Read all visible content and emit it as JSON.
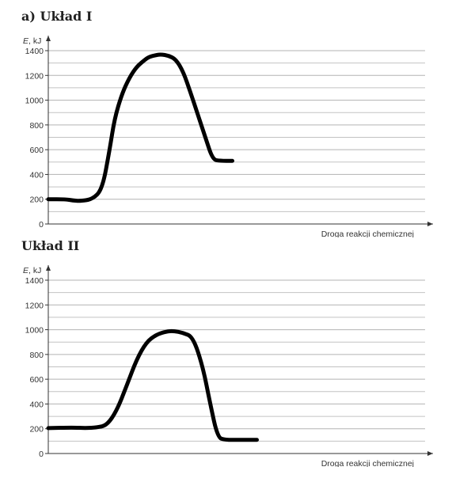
{
  "chart_data": [
    {
      "type": "line",
      "title": "a) Układ I",
      "ylabel_italic": "E",
      "ylabel_unit": ", kJ",
      "xlabel": "Droga reakcji chemicznej",
      "ylim": [
        0,
        1400
      ],
      "yticks": [
        0,
        200,
        400,
        600,
        800,
        1000,
        1200,
        1400
      ],
      "grid": true,
      "line_color": "#000000",
      "series": [
        {
          "x": [
            0,
            0.07,
            0.1,
            0.13,
            0.18,
            0.22,
            0.25,
            0.27,
            0.3,
            0.33,
            0.36,
            0.39,
            0.41,
            0.44,
            0.46,
            0.49,
            0.52,
            0.55,
            0.58,
            0.61,
            0.64,
            0.67,
            0.7,
            0.75
          ],
          "y": [
            200,
            200,
            190,
            185,
            200,
            280,
            600,
            850,
            1050,
            1180,
            1270,
            1320,
            1350,
            1365,
            1370,
            1360,
            1330,
            1230,
            1060,
            880,
            700,
            520,
            510,
            510
          ]
        }
      ]
    },
    {
      "type": "line",
      "title": "Układ II",
      "ylabel_italic": "E",
      "ylabel_unit": ", kJ",
      "xlabel": "Droga reakcji chemicznej",
      "ylim": [
        0,
        1400
      ],
      "yticks": [
        0,
        200,
        400,
        600,
        800,
        1000,
        1200,
        1400
      ],
      "grid": true,
      "line_color": "#000000",
      "series": [
        {
          "x": [
            0,
            0.1,
            0.15,
            0.2,
            0.24,
            0.28,
            0.32,
            0.36,
            0.4,
            0.44,
            0.48,
            0.51,
            0.55,
            0.59,
            0.63,
            0.66,
            0.69,
            0.72,
            0.78,
            0.85
          ],
          "y": [
            205,
            210,
            205,
            210,
            230,
            350,
            550,
            760,
            900,
            960,
            985,
            990,
            975,
            940,
            700,
            400,
            130,
            110,
            110,
            110
          ]
        }
      ]
    }
  ]
}
